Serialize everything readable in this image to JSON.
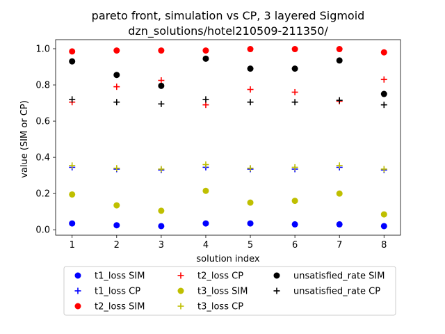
{
  "chart_data": {
    "type": "scatter",
    "title": "pareto front, simulation vs CP, 3 layered Sigmoid",
    "subtitle": "dzn_solutions/hotel210509-211350/",
    "xlabel": "solution index",
    "ylabel": "value (SIM or CP)",
    "xlim": [
      0.63,
      8.37
    ],
    "ylim": [
      -0.03,
      1.05
    ],
    "x_ticks": [
      1,
      2,
      3,
      4,
      5,
      6,
      7,
      8
    ],
    "x_tick_labels": [
      "1",
      "2",
      "3",
      "4",
      "5",
      "6",
      "7",
      "8"
    ],
    "y_ticks": [
      0.0,
      0.2,
      0.4,
      0.6,
      0.8,
      1.0
    ],
    "y_tick_labels": [
      "0.0",
      "0.2",
      "0.4",
      "0.6",
      "0.8",
      "1.0"
    ],
    "grid": false,
    "legend_placement": "bottom-center",
    "x": [
      1,
      2,
      3,
      4,
      5,
      6,
      7,
      8
    ],
    "series": [
      {
        "name": "t1_loss SIM",
        "marker": "circle",
        "color": "#0000ff",
        "values": [
          0.035,
          0.025,
          0.02,
          0.035,
          0.035,
          0.03,
          0.03,
          0.02
        ]
      },
      {
        "name": "t1_loss CP",
        "marker": "plus",
        "color": "#0000ff",
        "values": [
          0.345,
          0.335,
          0.33,
          0.345,
          0.335,
          0.335,
          0.345,
          0.33
        ]
      },
      {
        "name": "t2_loss SIM",
        "marker": "circle",
        "color": "#ff0000",
        "values": [
          0.985,
          0.99,
          0.99,
          0.99,
          0.998,
          0.998,
          0.998,
          0.98
        ]
      },
      {
        "name": "t2_loss CP",
        "marker": "plus",
        "color": "#ff0000",
        "values": [
          0.705,
          0.79,
          0.825,
          0.69,
          0.775,
          0.76,
          0.71,
          0.83
        ]
      },
      {
        "name": "t3_loss SIM",
        "marker": "circle",
        "color": "#bfbf00",
        "values": [
          0.195,
          0.135,
          0.105,
          0.215,
          0.15,
          0.16,
          0.2,
          0.085
        ]
      },
      {
        "name": "t3_loss CP",
        "marker": "plus",
        "color": "#bfbf00",
        "values": [
          0.355,
          0.34,
          0.335,
          0.36,
          0.34,
          0.345,
          0.355,
          0.335
        ]
      },
      {
        "name": "unsatisfied_rate SIM",
        "marker": "circle",
        "color": "#000000",
        "values": [
          0.93,
          0.855,
          0.795,
          0.945,
          0.89,
          0.89,
          0.935,
          0.75
        ]
      },
      {
        "name": "unsatisfied_rate CP",
        "marker": "plus",
        "color": "#000000",
        "values": [
          0.72,
          0.705,
          0.695,
          0.72,
          0.705,
          0.705,
          0.715,
          0.69
        ]
      }
    ]
  }
}
